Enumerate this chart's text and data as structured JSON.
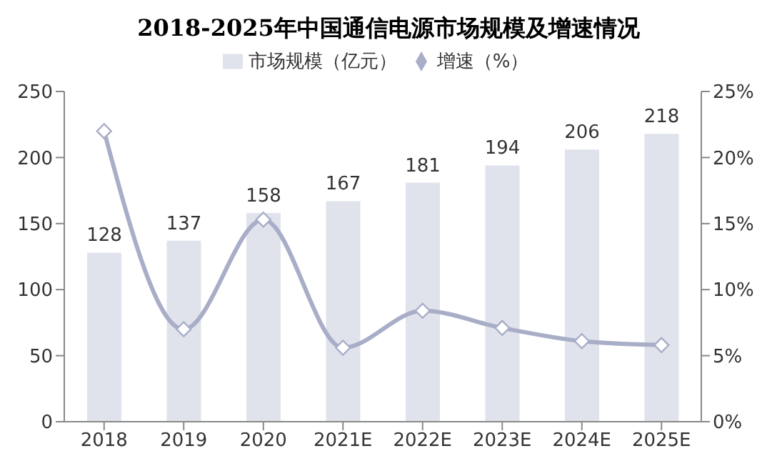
{
  "chart_data": {
    "type": "bar",
    "title": "2018-2025年中国通信电源市场规模及增速情况",
    "categories": [
      "2018",
      "2019",
      "2020",
      "2021E",
      "2022E",
      "2023E",
      "2024E",
      "2025E"
    ],
    "series": [
      {
        "name": "市场规模（亿元）",
        "color": "#e1e3ec",
        "values": [
          128,
          137,
          158,
          167,
          181,
          194,
          206,
          218
        ],
        "value_labels": [
          "128",
          "137",
          "158",
          "167",
          "181",
          "194",
          "206",
          "218"
        ]
      },
      {
        "name": "增速（%）",
        "type": "line",
        "axis": "y2",
        "color": "#a9aec8",
        "marker": "diamond",
        "values": [
          22.0,
          7.0,
          15.3,
          5.6,
          8.4,
          7.1,
          6.1,
          5.8
        ]
      }
    ],
    "ylim": [
      0,
      250
    ],
    "yticks": [
      0,
      50,
      100,
      150,
      200,
      250
    ],
    "y2lim": [
      0,
      25
    ],
    "y2ticks": [
      {
        "value": 0,
        "label": "0%"
      },
      {
        "value": 5,
        "label": "5%"
      },
      {
        "value": 10,
        "label": "10%"
      },
      {
        "value": 15,
        "label": "15%"
      },
      {
        "value": 20,
        "label": "20%"
      },
      {
        "value": 25,
        "label": "25%"
      }
    ],
    "grid": false,
    "legend": "top"
  }
}
